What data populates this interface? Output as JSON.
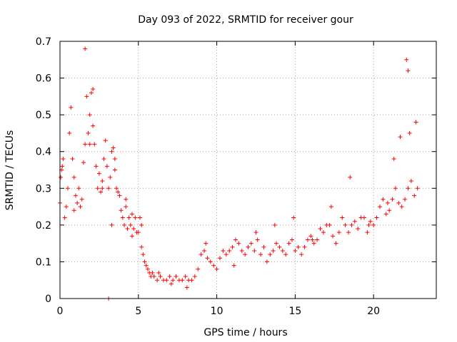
{
  "chart_data": {
    "type": "scatter",
    "title": "Day 093 of 2022, SRMTID for receiver gour",
    "xlabel": "GPS time / hours",
    "ylabel": "SRMTID / TECUs",
    "xlim": [
      0,
      24
    ],
    "ylim": [
      0,
      0.7
    ],
    "xticks": [
      0,
      5,
      10,
      15,
      20
    ],
    "xtick_labels": [
      "0",
      "5",
      "10",
      "15",
      "20"
    ],
    "yticks": [
      0,
      0.1,
      0.2,
      0.3,
      0.4,
      0.5,
      0.6,
      0.7
    ],
    "ytick_labels": [
      "0",
      "0.1",
      "0.2",
      "0.3",
      "0.4",
      "0.5",
      "0.6",
      "0.7"
    ],
    "grid": true,
    "marker": "plus",
    "series": [
      {
        "name": "SRMTID",
        "color": "#ff0000",
        "x": [
          0.0,
          0.1,
          0.2,
          0.3,
          0.4,
          0.5,
          0.6,
          0.7,
          0.8,
          0.9,
          1.0,
          1.1,
          1.2,
          1.3,
          1.4,
          1.5,
          1.6,
          1.7,
          1.8,
          1.9,
          2.0,
          2.1,
          2.2,
          2.3,
          2.4,
          2.5,
          2.6,
          2.7,
          2.8,
          2.9,
          3.0,
          3.1,
          3.2,
          3.3,
          3.4,
          3.5,
          3.6,
          3.7,
          3.8,
          3.9,
          4.0,
          4.1,
          4.2,
          4.3,
          4.4,
          4.5,
          4.6,
          4.7,
          4.8,
          4.9,
          5.0,
          5.1,
          5.2,
          5.3,
          5.4,
          5.5,
          5.6,
          5.7,
          5.8,
          5.9,
          6.0,
          6.2,
          6.4,
          6.6,
          6.8,
          7.0,
          7.2,
          7.4,
          7.6,
          7.8,
          8.0,
          8.2,
          8.4,
          8.6,
          8.8,
          9.0,
          9.2,
          9.4,
          9.6,
          9.8,
          10.0,
          10.2,
          10.4,
          10.6,
          10.8,
          11.0,
          11.2,
          11.4,
          11.6,
          11.8,
          12.0,
          12.2,
          12.4,
          12.6,
          12.8,
          13.0,
          13.2,
          13.4,
          13.6,
          13.8,
          14.0,
          14.2,
          14.4,
          14.6,
          14.8,
          15.0,
          15.2,
          15.4,
          15.6,
          15.8,
          16.0,
          16.2,
          16.4,
          16.6,
          16.8,
          17.0,
          17.2,
          17.4,
          17.6,
          17.8,
          18.0,
          18.2,
          18.4,
          18.6,
          18.8,
          19.0,
          19.2,
          19.4,
          19.6,
          19.8,
          20.0,
          20.2,
          20.4,
          20.6,
          20.8,
          21.0,
          21.2,
          21.4,
          21.6,
          21.8,
          22.0,
          22.2,
          22.4,
          22.6,
          22.8,
          1.6,
          3.1,
          22.1,
          22.2,
          0.05,
          0.15,
          0.9,
          1.9,
          2.1,
          2.7,
          3.3,
          3.5,
          4.2,
          4.6,
          5.2,
          6.3,
          7.1,
          8.1,
          9.3,
          11.1,
          12.5,
          13.7,
          14.9,
          16.1,
          17.3,
          18.5,
          19.7,
          20.9,
          21.3,
          21.7,
          22.3,
          22.7
        ],
        "y": [
          0.26,
          0.35,
          0.38,
          0.22,
          0.25,
          0.3,
          0.45,
          0.52,
          0.38,
          0.33,
          0.28,
          0.26,
          0.3,
          0.25,
          0.27,
          0.37,
          0.42,
          0.55,
          0.45,
          0.5,
          0.56,
          0.47,
          0.42,
          0.36,
          0.3,
          0.34,
          0.29,
          0.32,
          0.38,
          0.43,
          0.36,
          0.3,
          0.33,
          0.4,
          0.41,
          0.35,
          0.3,
          0.29,
          0.28,
          0.24,
          0.22,
          0.2,
          0.25,
          0.19,
          0.22,
          0.2,
          0.23,
          0.19,
          0.22,
          0.18,
          0.18,
          0.22,
          0.14,
          0.12,
          0.1,
          0.09,
          0.08,
          0.07,
          0.06,
          0.07,
          0.06,
          0.05,
          0.06,
          0.05,
          0.05,
          0.06,
          0.05,
          0.06,
          0.05,
          0.05,
          0.06,
          0.05,
          0.05,
          0.06,
          0.08,
          0.12,
          0.13,
          0.11,
          0.1,
          0.09,
          0.08,
          0.11,
          0.13,
          0.12,
          0.13,
          0.14,
          0.16,
          0.15,
          0.13,
          0.12,
          0.14,
          0.15,
          0.13,
          0.16,
          0.12,
          0.14,
          0.1,
          0.12,
          0.13,
          0.15,
          0.14,
          0.13,
          0.12,
          0.15,
          0.16,
          0.13,
          0.14,
          0.12,
          0.14,
          0.16,
          0.17,
          0.15,
          0.16,
          0.19,
          0.18,
          0.2,
          0.2,
          0.17,
          0.15,
          0.18,
          0.22,
          0.2,
          0.18,
          0.2,
          0.21,
          0.19,
          0.22,
          0.22,
          0.18,
          0.21,
          0.2,
          0.22,
          0.25,
          0.27,
          0.23,
          0.24,
          0.27,
          0.3,
          0.26,
          0.25,
          0.27,
          0.3,
          0.32,
          0.28,
          0.3,
          0.68,
          0.0,
          0.65,
          0.62,
          0.33,
          0.36,
          0.24,
          0.42,
          0.57,
          0.3,
          0.2,
          0.38,
          0.27,
          0.17,
          0.2,
          0.07,
          0.04,
          0.03,
          0.15,
          0.09,
          0.18,
          0.2,
          0.22,
          0.16,
          0.25,
          0.33,
          0.2,
          0.26,
          0.38,
          0.44,
          0.45,
          0.48
        ]
      }
    ]
  }
}
